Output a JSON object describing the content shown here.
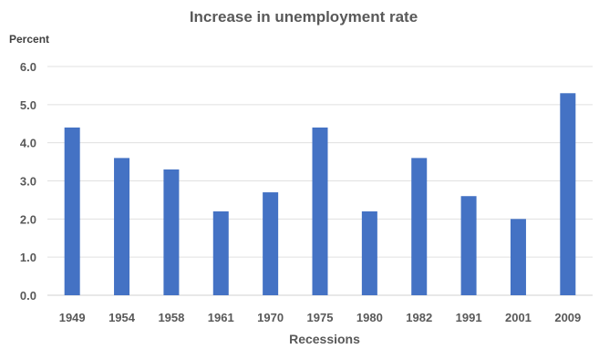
{
  "chart_data": {
    "type": "bar",
    "title": "Increase in unemployment rate",
    "ylabel": "Percent",
    "xlabel": "Recessions",
    "categories": [
      "1949",
      "1954",
      "1958",
      "1961",
      "1970",
      "1975",
      "1980",
      "1982",
      "1991",
      "2001",
      "2009"
    ],
    "values": [
      4.4,
      3.6,
      3.3,
      2.2,
      2.7,
      4.4,
      2.2,
      3.6,
      2.6,
      2.0,
      5.3
    ],
    "ylim": [
      0,
      6
    ],
    "yticks": [
      "0.0",
      "1.0",
      "2.0",
      "3.0",
      "4.0",
      "5.0",
      "6.0"
    ],
    "grid": true,
    "bar_color": "#4472c4"
  }
}
